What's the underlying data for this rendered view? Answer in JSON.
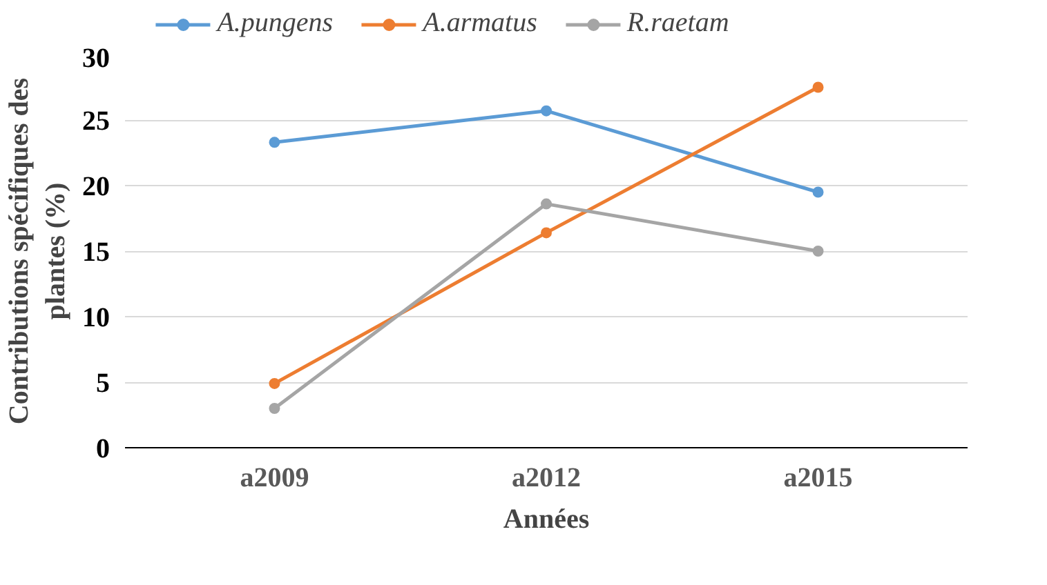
{
  "chart_data": {
    "type": "line",
    "xlabel": "Années",
    "ylabel": "Contributions spécifiques des plantes (%)",
    "categories": [
      "a2009",
      "a2012",
      "a2015"
    ],
    "series": [
      {
        "name": "A.pungens",
        "color": "#5b9bd5",
        "values": [
          23.3,
          25.7,
          19.5
        ]
      },
      {
        "name": "A.armatus",
        "color": "#ed7d31",
        "values": [
          4.9,
          16.4,
          27.5
        ]
      },
      {
        "name": "R.raetam",
        "color": "#a5a5a5",
        "values": [
          3.0,
          18.6,
          15.0
        ]
      }
    ],
    "ylim": [
      0,
      30
    ],
    "yticks": [
      0,
      5,
      10,
      15,
      20,
      25,
      30
    ],
    "grid": "y",
    "legend": "top",
    "marker": "circle",
    "line_style": "solid"
  }
}
